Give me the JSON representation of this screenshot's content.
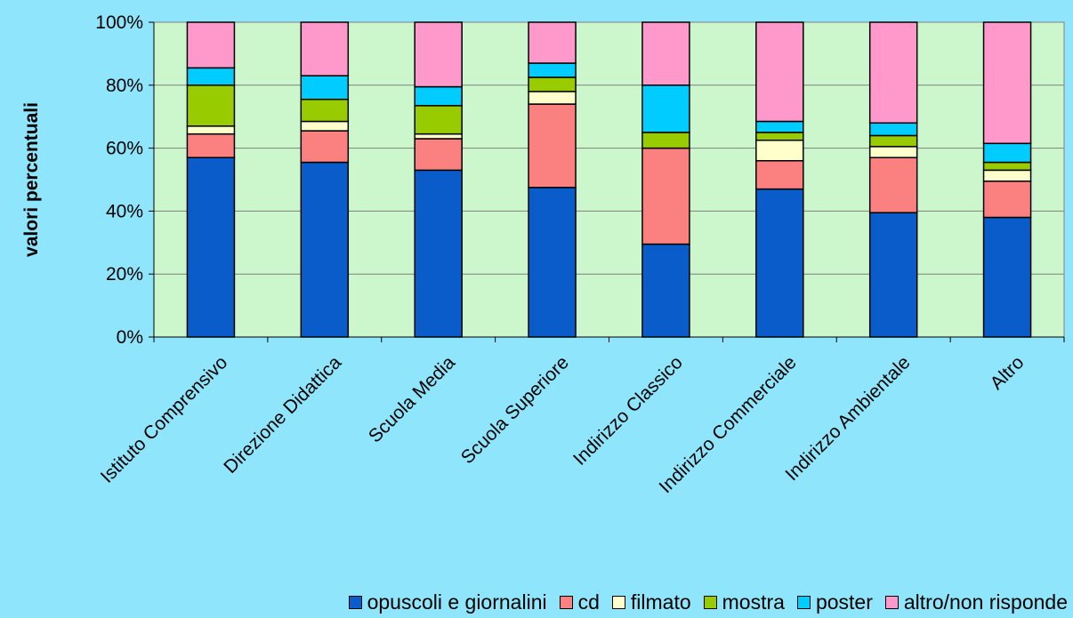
{
  "chart_data": {
    "type": "bar",
    "stacked": true,
    "percent": true,
    "title": "",
    "xlabel": "",
    "ylabel": "valori percentuali",
    "ylim": [
      0,
      100
    ],
    "yticks": [
      "0%",
      "20%",
      "40%",
      "60%",
      "80%",
      "100%"
    ],
    "grid": true,
    "legend_position": "bottom",
    "plot_background": "#ccf7cc",
    "categories": [
      "Istituto Comprensivo",
      "Direzione Didattica",
      "Scuola Media",
      "Scuola Superiore",
      "Indirizzo Classico",
      "Indirizzo Commerciale",
      "Indirizzo Ambientale",
      "Altro"
    ],
    "series": [
      {
        "name": "opuscoli e giornalini",
        "color": "#0b5ccb",
        "values": [
          57,
          55.5,
          53,
          47.5,
          29.5,
          47,
          39.5,
          38
        ]
      },
      {
        "name": "cd",
        "color": "#fb8080",
        "values": [
          7.5,
          10,
          10,
          26.5,
          30.5,
          9,
          17.5,
          11.5
        ]
      },
      {
        "name": "filmato",
        "color": "#ffffcc",
        "values": [
          2.5,
          3,
          1.5,
          4,
          0,
          6.5,
          3.5,
          3.5
        ]
      },
      {
        "name": "mostra",
        "color": "#99cc00",
        "values": [
          13,
          7,
          9,
          4.5,
          5,
          2.5,
          3.5,
          2.5
        ]
      },
      {
        "name": "poster",
        "color": "#00ccff",
        "values": [
          5.5,
          7.5,
          6,
          4.5,
          15,
          3.5,
          4,
          6
        ]
      },
      {
        "name": "altro/non risponde",
        "color": "#ff99cc",
        "values": [
          14.5,
          17,
          20.5,
          13,
          20,
          31.5,
          32,
          38.5
        ]
      }
    ]
  }
}
